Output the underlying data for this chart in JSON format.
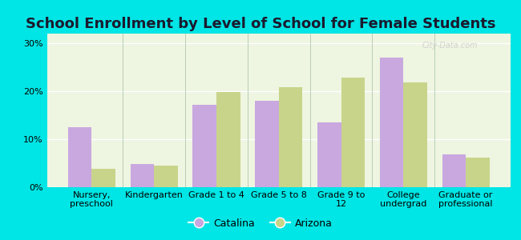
{
  "title": "School Enrollment by Level of School for Female Students",
  "categories": [
    "Nursery,\npreschool",
    "Kindergarten",
    "Grade 1 to 4",
    "Grade 5 to 8",
    "Grade 9 to\n12",
    "College\nundergrad",
    "Graduate or\nprofessional"
  ],
  "catalina": [
    12.5,
    4.8,
    17.2,
    18.0,
    13.5,
    27.0,
    6.8
  ],
  "arizona": [
    3.8,
    4.5,
    19.8,
    20.8,
    22.8,
    21.8,
    6.2
  ],
  "catalina_color": "#c9a8e0",
  "arizona_color": "#c8d48a",
  "background_outer": "#00e5e5",
  "background_inner": "#eef5e0",
  "ylabel_ticks": [
    "0%",
    "10%",
    "20%",
    "30%"
  ],
  "yticks": [
    0,
    10,
    20,
    30
  ],
  "ylim": [
    0,
    32
  ],
  "legend_labels": [
    "Catalina",
    "Arizona"
  ],
  "bar_width": 0.38,
  "title_fontsize": 13,
  "tick_fontsize": 8,
  "legend_fontsize": 9,
  "watermark": "City-Data.com"
}
